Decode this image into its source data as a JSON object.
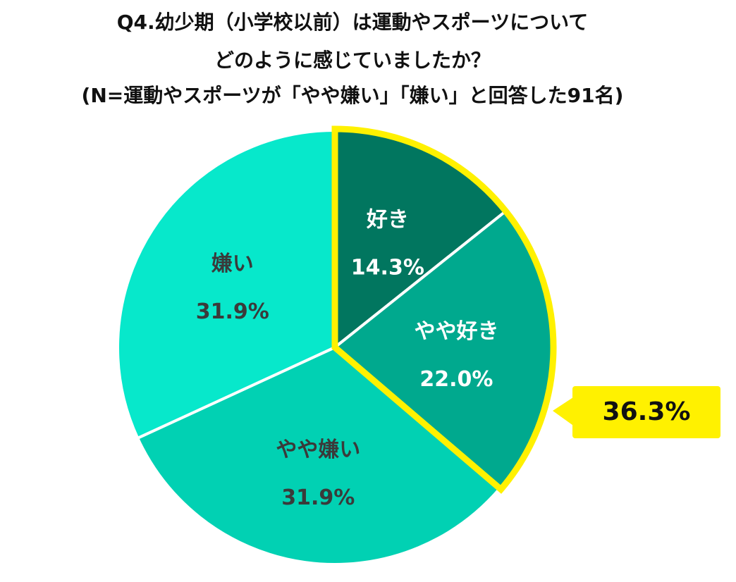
{
  "title_lines": [
    "Q4.幼少期（小学校以前）は運動やスポーツについて",
    "どのように感じていましたか？",
    "(N=運動やスポーツが「やや嫌い」「嫌い」と回答した91名)"
  ],
  "chart_data": {
    "type": "pie",
    "slices": [
      {
        "label": "好き",
        "value": 14.3,
        "value_label": "14.3%",
        "color": "#01765f",
        "text_color": "#ffffff"
      },
      {
        "label": "やや好き",
        "value": 22.0,
        "value_label": "22.0%",
        "color": "#00a98e",
        "text_color": "#ffffff"
      },
      {
        "label": "やや嫌い",
        "value": 31.9,
        "value_label": "31.9%",
        "color": "#01d1b3",
        "text_color": "#3a3a3a"
      },
      {
        "label": "嫌い",
        "value": 31.9,
        "value_label": "31.9%",
        "color": "#07e8cb",
        "text_color": "#3a3a3a"
      }
    ],
    "start": "12 o'clock",
    "direction": "clockwise",
    "highlight": {
      "slices": [
        "好き",
        "やや好き"
      ],
      "value_label": "36.3%",
      "color": "#fff100"
    }
  }
}
